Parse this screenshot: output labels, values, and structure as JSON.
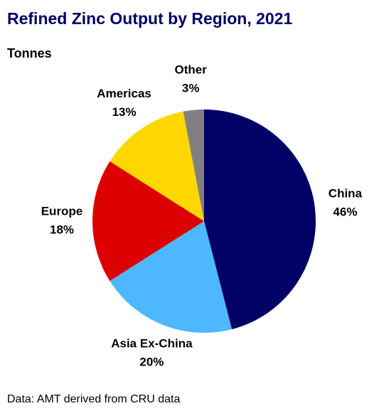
{
  "chart_data": {
    "type": "pie",
    "title": "Refined Zinc Output by Region, 2021",
    "subtitle": "Tonnes",
    "categories": [
      "China",
      "Asia Ex-China",
      "Europe",
      "Americas",
      "Other"
    ],
    "values": [
      46,
      20,
      18,
      13,
      3
    ],
    "value_labels": [
      "46%",
      "20%",
      "18%",
      "13%",
      "3%"
    ],
    "colors": [
      "#000066",
      "#4db8ff",
      "#dd0000",
      "#ffd700",
      "#808080"
    ],
    "source": "Data: AMT derived from CRU data"
  }
}
